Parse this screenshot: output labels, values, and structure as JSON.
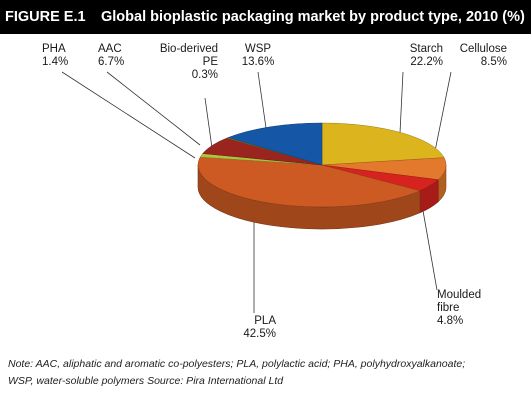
{
  "figure_label": "FIGURE E.1",
  "chart_data": {
    "type": "pie",
    "title": "Global bioplastic packaging market by product type, 2010 (%)",
    "slices": [
      {
        "name": "Starch",
        "value": 22.2,
        "color": "#dcb41e"
      },
      {
        "name": "Cellulose",
        "value": 8.5,
        "color": "#e3792c"
      },
      {
        "name": "Moulded fibre",
        "value": 4.8,
        "color": "#d6231f"
      },
      {
        "name": "PLA",
        "value": 42.5,
        "color": "#cc5a22"
      },
      {
        "name": "PHA",
        "value": 1.4,
        "color": "#b0c23e"
      },
      {
        "name": "AAC",
        "value": 6.7,
        "color": "#9a251f"
      },
      {
        "name": "Bio-derived PE",
        "value": 0.3,
        "color": "#6f8a3a"
      },
      {
        "name": "WSP",
        "value": 13.6,
        "color": "#1557a6"
      }
    ],
    "labels": {
      "pha": {
        "name": "PHA",
        "value": "1.4%"
      },
      "aac": {
        "name": "AAC",
        "value": "6.7%"
      },
      "pe": {
        "name1": "Bio-derived",
        "name2": "PE",
        "value": "0.3%"
      },
      "wsp": {
        "name": "WSP",
        "value": "13.6%"
      },
      "starch": {
        "name": "Starch",
        "value": "22.2%"
      },
      "cellulose": {
        "name": "Cellulose",
        "value": "8.5%"
      },
      "moulded": {
        "name1": "Moulded",
        "name2": "fibre",
        "value": "4.8%"
      },
      "pla": {
        "name": "PLA",
        "value": "42.5%"
      }
    }
  },
  "note": {
    "line1": "Note: AAC, aliphatic and aromatic co-polyesters; PLA, polylactic acid; PHA, polyhydroxyalkanoate;",
    "line2": "WSP, water-soluble polymers  Source: Pira International Ltd"
  }
}
